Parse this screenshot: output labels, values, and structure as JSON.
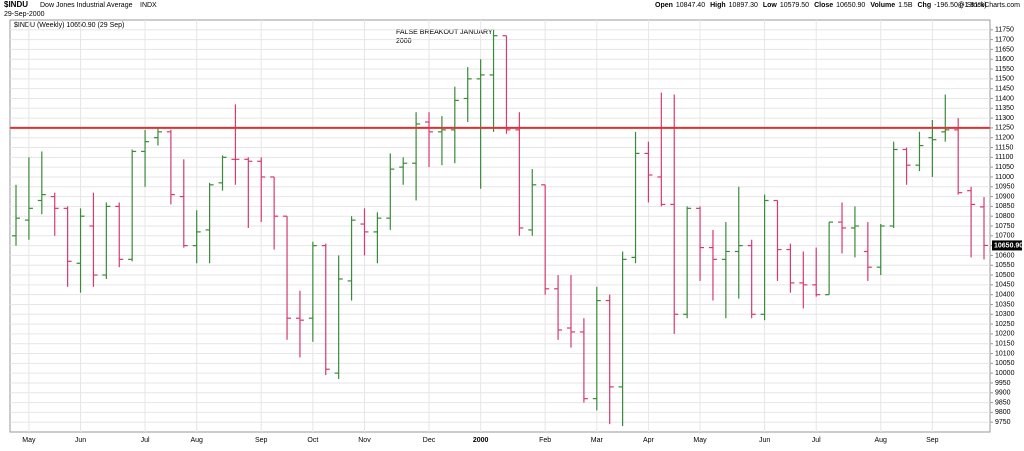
{
  "header": {
    "symbol": "$INDU",
    "name": "Dow Jones Industrial Average",
    "exchange": "INDX",
    "date": "29-Sep-2000",
    "credit": "@ StockCharts.com",
    "quote": [
      {
        "label": "Open",
        "value": "10847.40"
      },
      {
        "label": "High",
        "value": "10897.30"
      },
      {
        "label": "Low",
        "value": "10579.50"
      },
      {
        "label": "Close",
        "value": "10650.90"
      },
      {
        "label": "Volume",
        "value": "1.5B"
      },
      {
        "label": "Chg",
        "value": "-196.50 (-1.81%)"
      }
    ]
  },
  "chart_data": {
    "type": "ohlc",
    "legend": "$INDU (Weekly) 10650.90 (29 Sep)",
    "annotation": [
      "FALSE BREAKOUT JANUARY",
      "2000"
    ],
    "up_color": "#3a8a3a",
    "down_color": "#d63a6e",
    "hline": 11250,
    "hline_color": "#e03030",
    "last_label": "10650.90",
    "grid": true,
    "categories": [
      null,
      "May",
      null,
      null,
      null,
      "Jun",
      null,
      null,
      null,
      null,
      "Jul",
      null,
      null,
      null,
      "Aug",
      null,
      null,
      null,
      null,
      "Sep",
      null,
      null,
      null,
      "Oct",
      null,
      null,
      null,
      "Nov",
      null,
      null,
      null,
      null,
      "Dec",
      null,
      null,
      null,
      "2000",
      null,
      null,
      null,
      null,
      "Feb",
      null,
      null,
      null,
      "Mar",
      null,
      null,
      null,
      "Apr",
      null,
      null,
      null,
      "May",
      null,
      null,
      null,
      null,
      "Jun",
      null,
      null,
      null,
      "Jul",
      null,
      null,
      null,
      null,
      "Aug",
      null,
      null,
      null,
      "Sep",
      null,
      null,
      null,
      null
    ],
    "series": [
      {
        "name": "$INDU",
        "open": [
          10700,
          10780,
          10880,
          10900,
          10840,
          10560,
          10750,
          10500,
          10850,
          10580,
          11130,
          11200,
          11230,
          10900,
          10650,
          10730,
          10970,
          11090,
          11090,
          11080,
          11000,
          10800,
          10280,
          10280,
          10650,
          10000,
          10470,
          10760,
          10720,
          10790,
          11050,
          11070,
          11280,
          11230,
          11240,
          11400,
          11500,
          11520,
          11720,
          11240,
          10730,
          10960,
          10430,
          10230,
          10210,
          9870,
          10370,
          9930,
          10590,
          11120,
          11000,
          10860,
          10300,
          10840,
          10640,
          10580,
          10620,
          10650,
          10300,
          10880,
          10630,
          10460,
          10450,
          10400,
          10770,
          10740,
          10620,
          10540,
          10750,
          11140,
          11060,
          11200,
          11230,
          11240,
          10930,
          10847.4
        ],
        "high": [
          10960,
          11100,
          11130,
          10920,
          10850,
          10840,
          10920,
          10870,
          10870,
          11140,
          11240,
          11250,
          11240,
          11090,
          10830,
          10970,
          11110,
          11370,
          11100,
          11100,
          11000,
          10800,
          10420,
          10670,
          10660,
          10600,
          10800,
          10840,
          10820,
          11120,
          11100,
          11330,
          11330,
          11310,
          11460,
          11560,
          11600,
          11750,
          11720,
          11330,
          11040,
          10960,
          10500,
          10500,
          10280,
          10440,
          10400,
          10620,
          11230,
          11180,
          11430,
          11420,
          10850,
          10850,
          10730,
          10770,
          10950,
          10680,
          10910,
          10880,
          10660,
          10620,
          10640,
          10770,
          10870,
          10850,
          10770,
          10760,
          11180,
          11150,
          11230,
          11290,
          11420,
          11300,
          10950,
          10897.3
        ],
        "low": [
          10650,
          10680,
          10810,
          10700,
          10440,
          10410,
          10440,
          10480,
          10540,
          10570,
          10950,
          11160,
          10860,
          10640,
          10560,
          10560,
          10930,
          10960,
          10740,
          10770,
          10630,
          10170,
          10080,
          10160,
          9990,
          9970,
          10370,
          10600,
          10560,
          10730,
          10960,
          10880,
          11050,
          11060,
          11070,
          11280,
          10940,
          11230,
          11220,
          10700,
          10700,
          10400,
          10170,
          10130,
          9850,
          9810,
          9740,
          9730,
          10560,
          10870,
          10850,
          10200,
          10280,
          10470,
          10370,
          10280,
          10380,
          10280,
          10270,
          10470,
          10410,
          10330,
          10390,
          10400,
          10610,
          10590,
          10470,
          10500,
          10740,
          10960,
          11030,
          11000,
          11180,
          10910,
          10590,
          10579.5
        ],
        "close": [
          10790,
          10840,
          10910,
          10840,
          10570,
          10800,
          10500,
          10850,
          10580,
          11130,
          11180,
          11230,
          10910,
          10650,
          10720,
          10960,
          11100,
          11090,
          11080,
          11000,
          10800,
          10280,
          10270,
          10650,
          10020,
          10480,
          10780,
          10720,
          10790,
          11040,
          11070,
          11270,
          11230,
          11240,
          11390,
          11500,
          11520,
          11720,
          11240,
          10740,
          10960,
          10430,
          10220,
          10210,
          9870,
          10370,
          9930,
          10580,
          11120,
          11010,
          10860,
          10300,
          10840,
          10640,
          10580,
          10620,
          10650,
          10300,
          10880,
          10630,
          10460,
          10450,
          10400,
          10770,
          10740,
          10750,
          10540,
          10750,
          11140,
          11060,
          11160,
          11190,
          11240,
          10920,
          10860,
          10650.9
        ]
      }
    ],
    "ylim": [
      9700,
      11800
    ],
    "yticks": [
      9750,
      9800,
      9850,
      9900,
      9950,
      10000,
      10050,
      10100,
      10150,
      10200,
      10250,
      10300,
      10350,
      10400,
      10450,
      10500,
      10550,
      10600,
      10650,
      10700,
      10750,
      10800,
      10850,
      10900,
      10950,
      11000,
      11050,
      11100,
      11150,
      11200,
      11250,
      11300,
      11350,
      11400,
      11450,
      11500,
      11550,
      11600,
      11650,
      11700,
      11750
    ]
  }
}
